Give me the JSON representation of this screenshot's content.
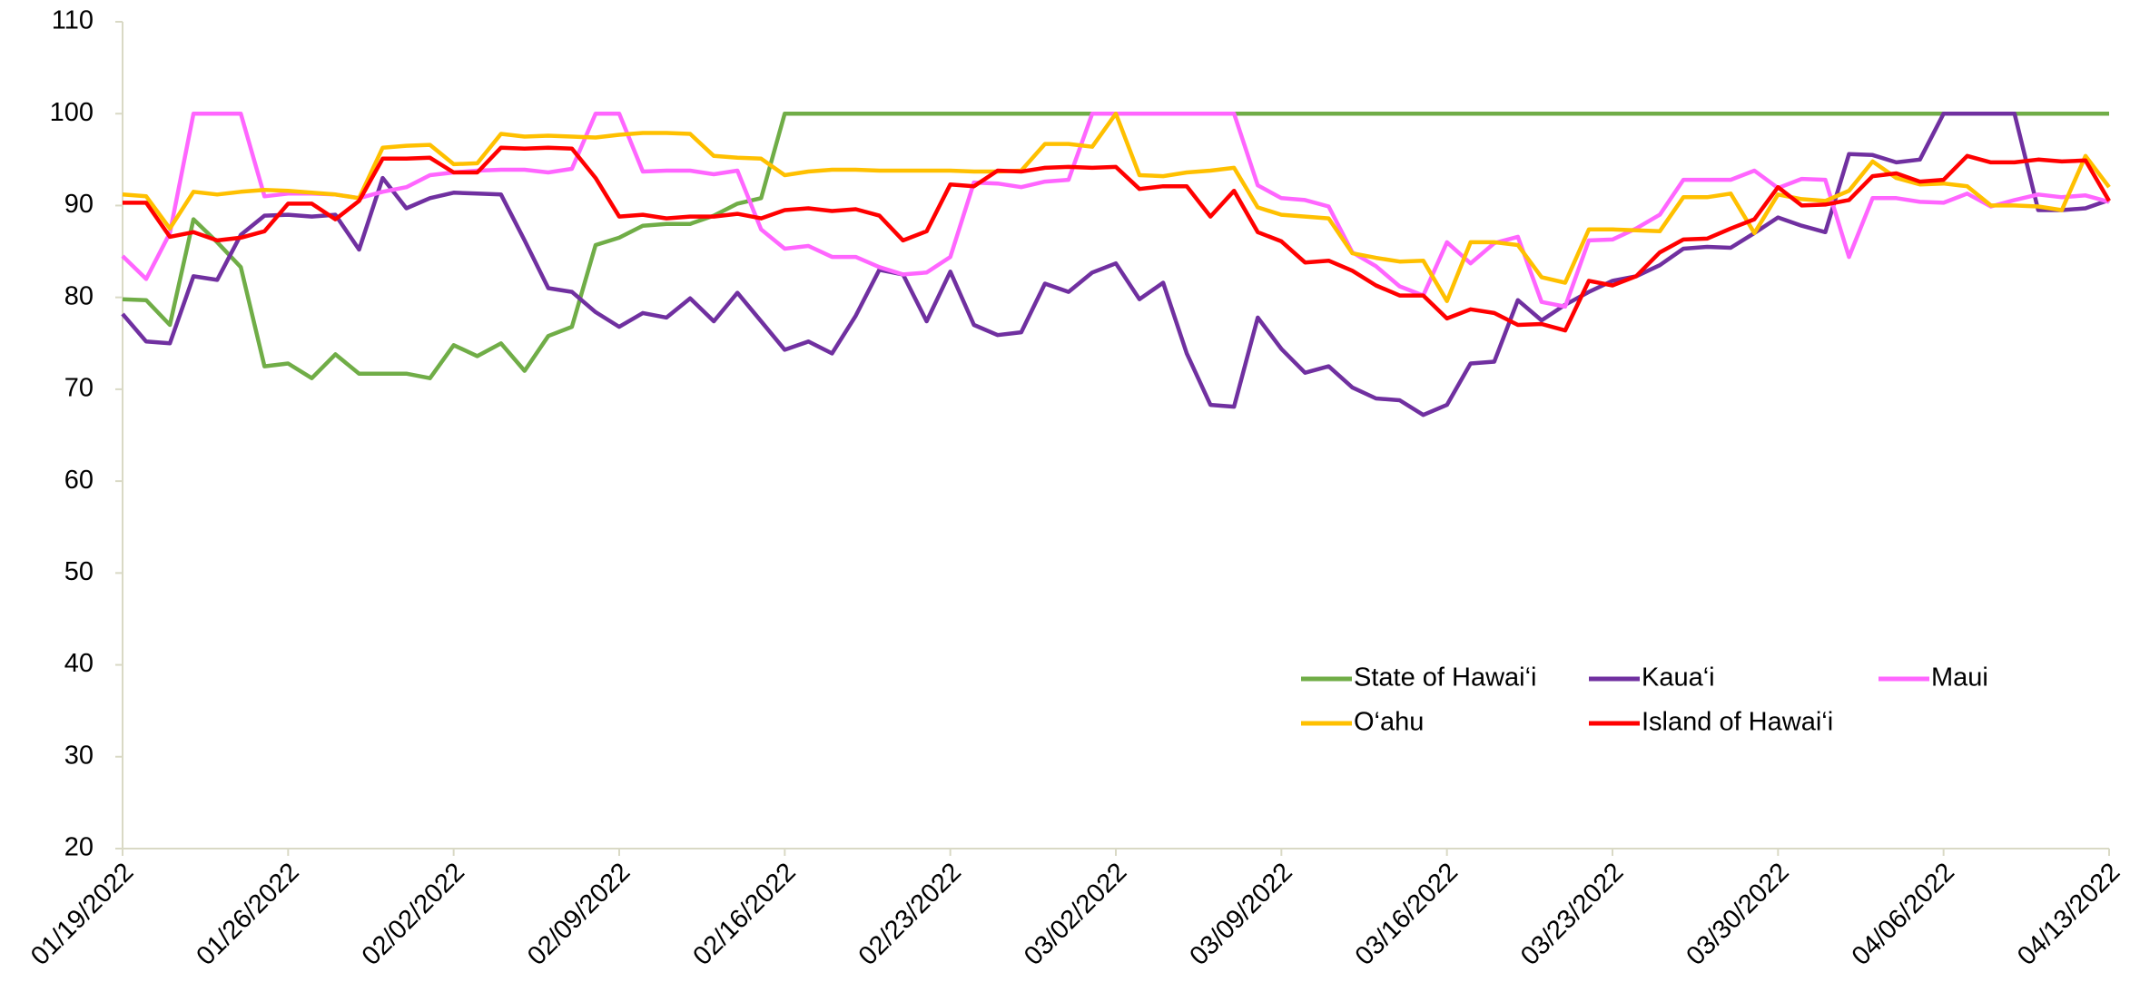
{
  "chart_data": {
    "type": "line",
    "categories": [
      "01/19/2022",
      null,
      null,
      null,
      null,
      null,
      null,
      "01/26/2022",
      null,
      null,
      null,
      null,
      null,
      null,
      "02/02/2022",
      null,
      null,
      null,
      null,
      null,
      null,
      "02/09/2022",
      null,
      null,
      null,
      null,
      null,
      null,
      "02/16/2022",
      null,
      null,
      null,
      null,
      null,
      null,
      "02/23/2022",
      null,
      null,
      null,
      null,
      null,
      null,
      "03/02/2022",
      null,
      null,
      null,
      null,
      null,
      null,
      "03/09/2022",
      null,
      null,
      null,
      null,
      null,
      null,
      "03/16/2022",
      null,
      null,
      null,
      null,
      null,
      null,
      "03/23/2022",
      null,
      null,
      null,
      null,
      null,
      null,
      "03/30/2022",
      null,
      null,
      null,
      null,
      null,
      null,
      "04/06/2022",
      null,
      null,
      null,
      null,
      null,
      null,
      "04/13/2022"
    ],
    "ylim": [
      20,
      110
    ],
    "yticks": [
      20,
      30,
      40,
      50,
      60,
      70,
      80,
      90,
      100,
      110
    ],
    "series": [
      {
        "name": "State of Hawai‘i",
        "color": "#70ad47",
        "values": [
          79.8,
          79.7,
          77,
          88.5,
          86,
          83.3,
          72.5,
          72.8,
          71.2,
          73.8,
          71.7,
          71.7,
          71.7,
          71.2,
          74.8,
          73.6,
          75,
          72,
          75.8,
          76.8,
          85.7,
          86.5,
          87.8,
          88,
          88,
          88.9,
          90.2,
          90.8,
          100,
          100,
          100,
          100,
          100,
          100,
          100,
          100,
          100,
          100,
          100,
          100,
          100,
          100,
          100,
          100,
          100,
          100,
          100,
          100,
          100,
          100,
          100,
          100,
          100,
          100,
          100,
          100,
          100,
          100,
          100,
          100,
          100,
          100,
          100,
          100,
          100,
          100,
          100,
          100,
          100,
          100,
          100,
          100,
          100,
          100,
          100,
          100,
          100,
          100,
          100,
          100,
          100,
          100,
          100,
          100,
          100
        ]
      },
      {
        "name": "Kaua‘i",
        "color": "#7030a0",
        "values": [
          78.2,
          75.2,
          75,
          82.3,
          81.9,
          86.8,
          88.9,
          89,
          88.8,
          89,
          85.2,
          93,
          89.7,
          90.8,
          91.4,
          91.3,
          91.2,
          86.2,
          81,
          80.6,
          78.4,
          76.8,
          78.3,
          77.8,
          79.9,
          77.4,
          80.5,
          77.4,
          74.3,
          75.2,
          73.9,
          78,
          83,
          82.5,
          77.4,
          82.8,
          77,
          75.9,
          76.2,
          81.5,
          80.6,
          82.7,
          83.7,
          79.8,
          81.6,
          73.9,
          68.3,
          68.1,
          77.8,
          74.4,
          71.8,
          72.5,
          70.2,
          69,
          68.8,
          67.2,
          68.3,
          72.8,
          73,
          79.7,
          77.5,
          79.2,
          80.6,
          81.8,
          82.3,
          83.5,
          85.3,
          85.5,
          85.4,
          87,
          88.7,
          87.8,
          87.1,
          95.6,
          95.5,
          94.7,
          95,
          100,
          100,
          100,
          100,
          89.5,
          89.5,
          89.7,
          90.6
        ]
      },
      {
        "name": "Maui",
        "color": "#ff66ff",
        "values": [
          84.5,
          82,
          87,
          100,
          100,
          100,
          91,
          91.3,
          91.3,
          91.2,
          90.8,
          91.5,
          92,
          93.3,
          93.6,
          93.8,
          93.9,
          93.9,
          93.6,
          94,
          100,
          100,
          93.7,
          93.8,
          93.8,
          93.4,
          93.8,
          87.4,
          85.3,
          85.6,
          84.4,
          84.4,
          83.3,
          82.5,
          82.7,
          84.4,
          92.5,
          92.4,
          92,
          92.6,
          92.8,
          100,
          100,
          100,
          100,
          100,
          100,
          100,
          92.2,
          90.8,
          90.6,
          89.9,
          84.9,
          83.4,
          81.2,
          80.2,
          86,
          83.7,
          85.9,
          86.6,
          79.5,
          79,
          86.2,
          86.3,
          87.5,
          89,
          92.8,
          92.8,
          92.8,
          93.8,
          91.9,
          92.9,
          92.8,
          84.4,
          90.8,
          90.8,
          90.4,
          90.3,
          91.3,
          89.9,
          90.6,
          91.2,
          90.9,
          91.1,
          90.4
        ]
      },
      {
        "name": "O‘ahu",
        "color": "#ffc000",
        "values": [
          91.2,
          91,
          87.5,
          91.5,
          91.2,
          91.5,
          91.7,
          91.6,
          91.4,
          91.2,
          90.8,
          96.3,
          96.5,
          96.6,
          94.5,
          94.6,
          97.8,
          97.5,
          97.6,
          97.5,
          97.4,
          97.7,
          97.9,
          97.9,
          97.8,
          95.4,
          95.2,
          95.1,
          93.3,
          93.7,
          93.9,
          93.9,
          93.8,
          93.8,
          93.8,
          93.8,
          93.7,
          93.7,
          93.8,
          96.7,
          96.7,
          96.4,
          100,
          93.3,
          93.2,
          93.6,
          93.8,
          94.1,
          89.8,
          89,
          88.8,
          88.6,
          84.8,
          84.3,
          83.9,
          84,
          79.6,
          86,
          86,
          85.7,
          82.2,
          81.6,
          87.4,
          87.4,
          87.3,
          87.2,
          90.9,
          90.9,
          91.3,
          87,
          91.2,
          90.7,
          90.5,
          91.6,
          94.8,
          93,
          92.3,
          92.4,
          92.1,
          90,
          90,
          89.9,
          89.5,
          95.4,
          92
        ]
      },
      {
        "name": "Island of Hawai‘i",
        "color": "#ff0000",
        "values": [
          90.3,
          90.3,
          86.6,
          87.1,
          86.2,
          86.5,
          87.2,
          90.2,
          90.2,
          88.5,
          90.5,
          95.1,
          95.1,
          95.2,
          93.6,
          93.6,
          96.3,
          96.2,
          96.3,
          96.2,
          93,
          88.8,
          89,
          88.6,
          88.8,
          88.8,
          89.1,
          88.6,
          89.5,
          89.7,
          89.4,
          89.6,
          88.9,
          86.2,
          87.2,
          92.3,
          92.1,
          93.8,
          93.7,
          94.1,
          94.2,
          94.1,
          94.2,
          91.8,
          92.1,
          92.1,
          88.8,
          91.6,
          87.1,
          86.1,
          83.8,
          84,
          82.9,
          81.3,
          80.2,
          80.2,
          77.7,
          78.7,
          78.3,
          77,
          77.1,
          76.4,
          81.8,
          81.3,
          82.3,
          84.9,
          86.3,
          86.4,
          87.5,
          88.5,
          92,
          90,
          90.1,
          90.6,
          93.2,
          93.5,
          92.6,
          92.8,
          95.4,
          94.7,
          94.7,
          95,
          94.8,
          94.9,
          90.5
        ]
      }
    ]
  }
}
